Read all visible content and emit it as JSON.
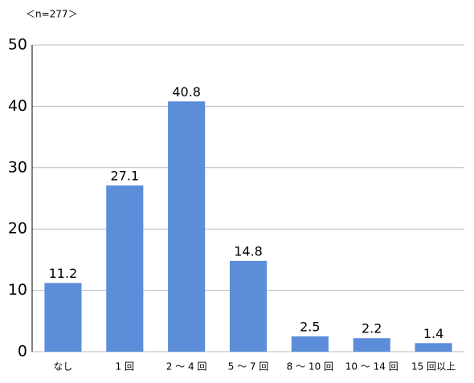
{
  "chart_data": {
    "type": "bar",
    "annotation": "＜n=277＞",
    "categories": [
      "なし",
      "1 回",
      "2 ～ 4 回",
      "5 ～ 7 回",
      "8 ～ 10 回",
      "10 ～ 14 回",
      "15 回以上"
    ],
    "values": [
      11.2,
      27.1,
      40.8,
      14.8,
      2.5,
      2.2,
      1.4
    ],
    "color": "#5b8dd9",
    "ylim": [
      0,
      50
    ],
    "yticks": [
      0,
      10,
      20,
      30,
      40,
      50
    ],
    "grid": true
  }
}
